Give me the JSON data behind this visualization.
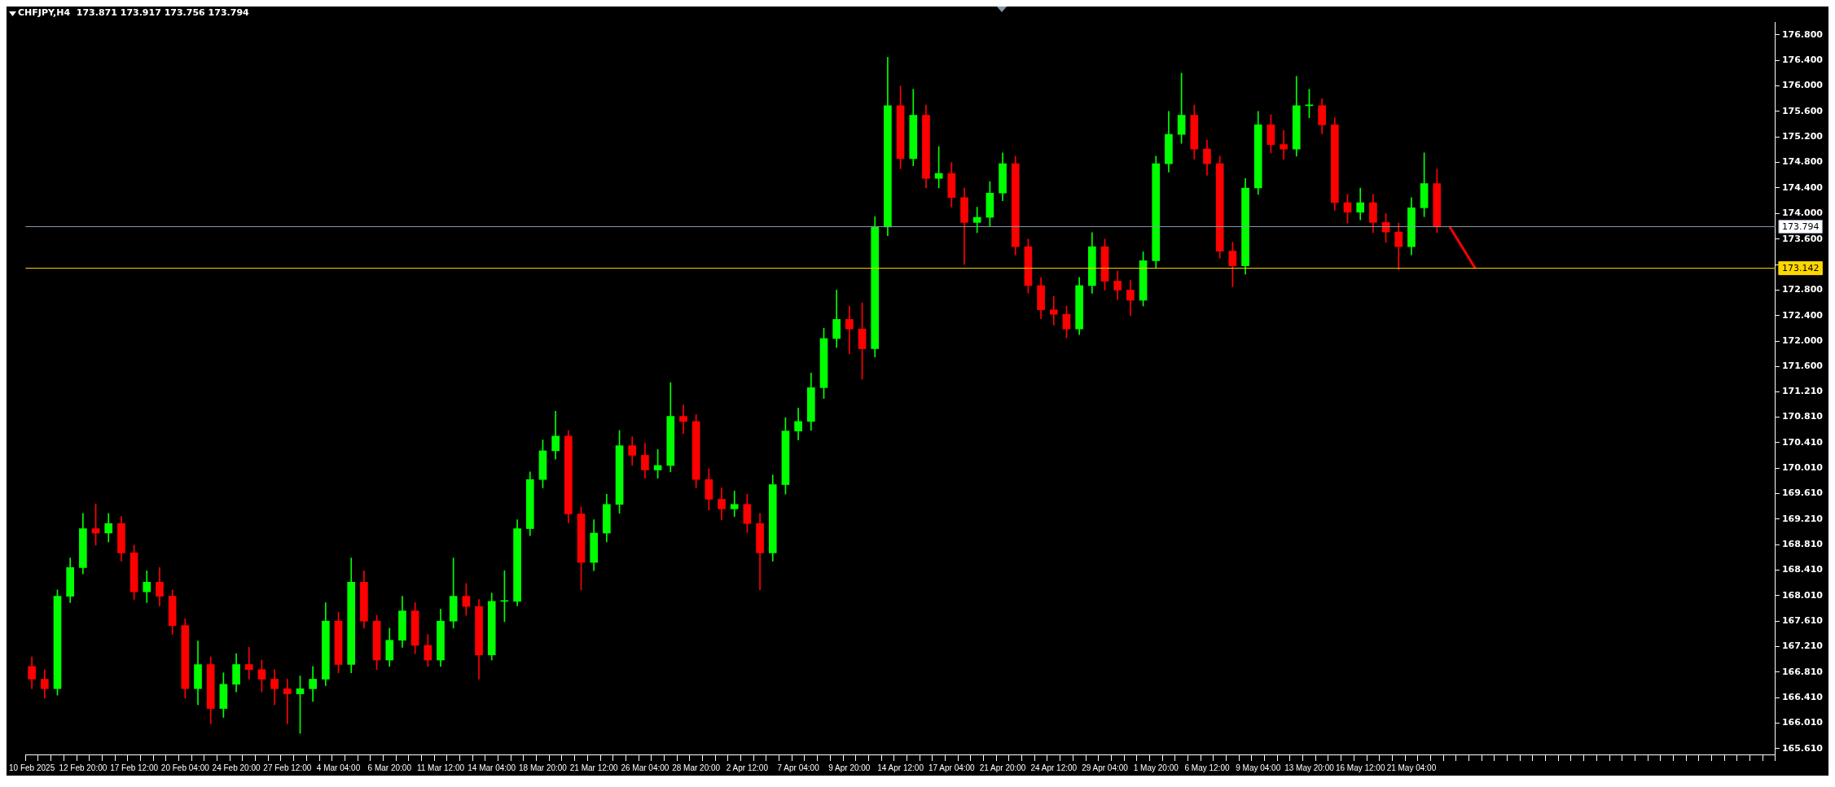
{
  "chart_data": {
    "type": "candlestick",
    "title": "CHFJPY,H4  173.871 173.917 173.756 173.794",
    "categories": [
      "10 Feb 2025",
      null,
      null,
      null,
      "12 Feb 20:00",
      null,
      null,
      null,
      "17 Feb 12:00",
      null,
      null,
      null,
      "20 Feb 04:00",
      null,
      null,
      null,
      "24 Feb 20:00",
      null,
      null,
      null,
      "27 Feb 12:00",
      null,
      null,
      null,
      "4 Mar 04:00",
      null,
      null,
      null,
      "6 Mar 20:00",
      null,
      null,
      null,
      "11 Mar 12:00",
      null,
      null,
      null,
      "14 Mar 04:00",
      null,
      null,
      null,
      "18 Mar 20:00",
      null,
      null,
      null,
      "21 Mar 12:00",
      null,
      null,
      null,
      "26 Mar 04:00",
      null,
      null,
      null,
      "28 Mar 20:00",
      null,
      null,
      null,
      "2 Apr 12:00",
      null,
      null,
      null,
      "7 Apr 04:00",
      null,
      null,
      null,
      "9 Apr 20:00",
      null,
      null,
      null,
      "14 Apr 12:00",
      null,
      null,
      null,
      "17 Apr 04:00",
      null,
      null,
      null,
      "21 Apr 20:00",
      null,
      null,
      null,
      "24 Apr 12:00",
      null,
      null,
      null,
      "29 Apr 04:00",
      null,
      null,
      null,
      "1 May 20:00",
      null,
      null,
      null,
      "6 May 12:00",
      null,
      null,
      null,
      "9 May 04:00",
      null,
      null,
      null,
      "13 May 20:00",
      null,
      null,
      null,
      "16 May 12:00",
      null,
      null,
      null,
      "21 May 04:00",
      null,
      null,
      null,
      null,
      null,
      null,
      null,
      null,
      null,
      null,
      null,
      null,
      null,
      null,
      null,
      null,
      null,
      null,
      null,
      null,
      null,
      null,
      null,
      null,
      null,
      null,
      null,
      null
    ],
    "ohlc": [
      [
        166.9,
        167.05,
        166.55,
        166.7
      ],
      [
        166.7,
        166.85,
        166.4,
        166.55
      ],
      [
        166.55,
        168.1,
        166.45,
        168.0
      ],
      [
        168.0,
        168.6,
        167.9,
        168.45
      ],
      [
        168.45,
        169.3,
        168.35,
        169.06
      ],
      [
        169.06,
        169.45,
        168.8,
        168.99
      ],
      [
        168.99,
        169.3,
        168.85,
        169.14
      ],
      [
        169.14,
        169.25,
        168.55,
        168.68
      ],
      [
        168.68,
        168.8,
        167.95,
        168.07
      ],
      [
        168.07,
        168.4,
        167.9,
        168.22
      ],
      [
        168.22,
        168.45,
        167.85,
        168.0
      ],
      [
        168.0,
        168.1,
        167.4,
        167.54
      ],
      [
        167.54,
        167.65,
        166.4,
        166.55
      ],
      [
        166.55,
        167.3,
        166.3,
        166.93
      ],
      [
        166.93,
        167.05,
        166.0,
        166.24
      ],
      [
        166.24,
        166.8,
        166.1,
        166.62
      ],
      [
        166.62,
        167.1,
        166.5,
        166.93
      ],
      [
        166.93,
        167.2,
        166.7,
        166.85
      ],
      [
        166.85,
        167.0,
        166.5,
        166.7
      ],
      [
        166.7,
        166.85,
        166.3,
        166.55
      ],
      [
        166.55,
        166.7,
        166.0,
        166.47
      ],
      [
        166.47,
        166.75,
        165.85,
        166.55
      ],
      [
        166.55,
        166.9,
        166.35,
        166.7
      ],
      [
        166.7,
        167.9,
        166.6,
        167.61
      ],
      [
        167.61,
        167.75,
        166.8,
        166.93
      ],
      [
        166.93,
        168.6,
        166.8,
        168.22
      ],
      [
        168.22,
        168.4,
        167.5,
        167.61
      ],
      [
        167.61,
        167.7,
        166.85,
        167.0
      ],
      [
        167.0,
        167.5,
        166.9,
        167.31
      ],
      [
        167.31,
        168.0,
        167.2,
        167.77
      ],
      [
        167.77,
        167.9,
        167.1,
        167.23
      ],
      [
        167.23,
        167.4,
        166.9,
        167.0
      ],
      [
        167.0,
        167.8,
        166.9,
        167.61
      ],
      [
        167.61,
        168.6,
        167.5,
        168.0
      ],
      [
        168.0,
        168.2,
        167.7,
        167.84
      ],
      [
        167.84,
        167.95,
        166.7,
        167.08
      ],
      [
        167.08,
        168.05,
        167.0,
        167.92
      ],
      [
        167.92,
        168.4,
        167.6,
        167.92
      ],
      [
        167.92,
        169.2,
        167.85,
        169.06
      ],
      [
        169.06,
        169.95,
        168.95,
        169.83
      ],
      [
        169.83,
        170.45,
        169.7,
        170.28
      ],
      [
        170.28,
        170.9,
        170.15,
        170.51
      ],
      [
        170.51,
        170.6,
        169.15,
        169.29
      ],
      [
        169.29,
        169.4,
        168.1,
        168.53
      ],
      [
        168.53,
        169.2,
        168.4,
        168.99
      ],
      [
        168.99,
        169.6,
        168.85,
        169.44
      ],
      [
        169.44,
        170.6,
        169.3,
        170.36
      ],
      [
        170.36,
        170.5,
        170.05,
        170.21
      ],
      [
        170.21,
        170.4,
        169.85,
        169.98
      ],
      [
        169.98,
        170.3,
        169.85,
        170.05
      ],
      [
        170.05,
        171.35,
        169.95,
        170.82
      ],
      [
        170.82,
        171.0,
        170.55,
        170.74
      ],
      [
        170.74,
        170.85,
        169.7,
        169.83
      ],
      [
        169.83,
        170.0,
        169.35,
        169.52
      ],
      [
        169.52,
        169.7,
        169.2,
        169.37
      ],
      [
        169.37,
        169.65,
        169.25,
        169.44
      ],
      [
        169.44,
        169.6,
        169.0,
        169.14
      ],
      [
        169.14,
        169.3,
        168.1,
        168.68
      ],
      [
        168.68,
        169.9,
        168.55,
        169.75
      ],
      [
        169.75,
        170.8,
        169.6,
        170.59
      ],
      [
        170.59,
        170.95,
        170.45,
        170.74
      ],
      [
        170.74,
        171.5,
        170.6,
        171.27
      ],
      [
        171.27,
        172.2,
        171.1,
        172.04
      ],
      [
        172.04,
        172.8,
        171.9,
        172.34
      ],
      [
        172.34,
        172.55,
        171.8,
        172.19
      ],
      [
        172.19,
        172.6,
        171.4,
        171.88
      ],
      [
        171.88,
        173.95,
        171.75,
        173.79
      ],
      [
        173.79,
        176.45,
        173.65,
        175.69
      ],
      [
        175.69,
        176.0,
        174.7,
        174.86
      ],
      [
        174.86,
        175.95,
        174.75,
        175.54
      ],
      [
        175.54,
        175.7,
        174.4,
        174.55
      ],
      [
        174.55,
        175.05,
        174.4,
        174.63
      ],
      [
        174.63,
        174.8,
        174.1,
        174.25
      ],
      [
        174.25,
        174.4,
        173.2,
        173.86
      ],
      [
        173.86,
        174.1,
        173.7,
        173.94
      ],
      [
        173.94,
        174.5,
        173.8,
        174.32
      ],
      [
        174.32,
        174.95,
        174.2,
        174.78
      ],
      [
        174.78,
        174.9,
        173.35,
        173.48
      ],
      [
        173.48,
        173.6,
        172.75,
        172.87
      ],
      [
        172.87,
        173.0,
        172.35,
        172.49
      ],
      [
        172.49,
        172.7,
        172.25,
        172.42
      ],
      [
        172.42,
        172.55,
        172.05,
        172.19
      ],
      [
        172.19,
        173.0,
        172.1,
        172.87
      ],
      [
        172.87,
        173.7,
        172.75,
        173.48
      ],
      [
        173.48,
        173.6,
        172.8,
        172.94
      ],
      [
        172.94,
        173.1,
        172.65,
        172.8
      ],
      [
        172.8,
        172.95,
        172.4,
        172.64
      ],
      [
        172.64,
        173.4,
        172.55,
        173.26
      ],
      [
        173.26,
        174.9,
        173.15,
        174.78
      ],
      [
        174.78,
        175.6,
        174.65,
        175.24
      ],
      [
        175.24,
        176.2,
        175.1,
        175.54
      ],
      [
        175.54,
        175.7,
        174.85,
        175.01
      ],
      [
        175.01,
        175.15,
        174.6,
        174.78
      ],
      [
        174.78,
        174.9,
        173.3,
        173.41
      ],
      [
        173.41,
        173.55,
        172.85,
        173.18
      ],
      [
        173.18,
        174.55,
        173.05,
        174.4
      ],
      [
        174.4,
        175.6,
        174.3,
        175.39
      ],
      [
        175.39,
        175.55,
        174.95,
        175.08
      ],
      [
        175.08,
        175.3,
        174.85,
        175.01
      ],
      [
        175.01,
        176.15,
        174.9,
        175.69
      ],
      [
        175.69,
        175.95,
        175.5,
        175.69
      ],
      [
        175.69,
        175.8,
        175.25,
        175.39
      ],
      [
        175.39,
        175.5,
        174.05,
        174.17
      ],
      [
        174.17,
        174.3,
        173.85,
        174.02
      ],
      [
        174.02,
        174.4,
        173.9,
        174.17
      ],
      [
        174.17,
        174.3,
        173.7,
        173.86
      ],
      [
        173.86,
        174.0,
        173.55,
        173.71
      ],
      [
        173.71,
        173.85,
        173.12,
        173.48
      ],
      [
        173.48,
        174.25,
        173.35,
        174.09
      ],
      [
        174.09,
        174.95,
        173.95,
        174.47
      ],
      [
        174.47,
        174.7,
        173.7,
        173.79
      ],
      null,
      null,
      null,
      null,
      null,
      null,
      null,
      null,
      null,
      null,
      null,
      null,
      null,
      null,
      null,
      null,
      null,
      null,
      null,
      null,
      null,
      null,
      null,
      null,
      null,
      null
    ],
    "series": [
      {
        "type": "line",
        "color": "#ff0000",
        "values": [
          null,
          null,
          null,
          null,
          null,
          null,
          null,
          null,
          null,
          null,
          null,
          null,
          null,
          null,
          null,
          null,
          null,
          null,
          null,
          null,
          null,
          null,
          null,
          null,
          null,
          null,
          null,
          null,
          null,
          null,
          null,
          null,
          null,
          null,
          null,
          null,
          null,
          null,
          null,
          null,
          null,
          null,
          null,
          null,
          null,
          null,
          null,
          null,
          null,
          null,
          null,
          null,
          null,
          null,
          null,
          null,
          null,
          null,
          null,
          null,
          null,
          null,
          null,
          null,
          null,
          null,
          null,
          null,
          null,
          null,
          null,
          null,
          null,
          null,
          null,
          null,
          null,
          null,
          null,
          null,
          null,
          null,
          null,
          null,
          null,
          null,
          null,
          null,
          null,
          null,
          null,
          null,
          null,
          null,
          null,
          null,
          null,
          null,
          null,
          null,
          null,
          null,
          null,
          null,
          null,
          null,
          null,
          null,
          null,
          null,
          null,
          173.79,
          null,
          173.14,
          null,
          null,
          null,
          null,
          null,
          null,
          null,
          null,
          null,
          null,
          null,
          null,
          null,
          null,
          null,
          null,
          null,
          null,
          null,
          null,
          null,
          null,
          null
        ]
      }
    ],
    "ylim": [
      165.52,
      177.0
    ],
    "yticks": [
      {
        "value": 165.61,
        "label": "165.610"
      },
      {
        "value": 166.01,
        "label": "166.010"
      },
      {
        "value": 166.41,
        "label": "166.410"
      },
      {
        "value": 166.81,
        "label": "166.810"
      },
      {
        "value": 167.21,
        "label": "167.210"
      },
      {
        "value": 167.61,
        "label": "167.610"
      },
      {
        "value": 168.01,
        "label": "168.010"
      },
      {
        "value": 168.41,
        "label": "168.410"
      },
      {
        "value": 168.81,
        "label": "168.810"
      },
      {
        "value": 169.21,
        "label": "169.210"
      },
      {
        "value": 169.61,
        "label": "169.610"
      },
      {
        "value": 170.01,
        "label": "170.010"
      },
      {
        "value": 170.41,
        "label": "170.410"
      },
      {
        "value": 170.81,
        "label": "170.810"
      },
      {
        "value": 171.21,
        "label": "171.210"
      },
      {
        "value": 171.6,
        "label": "171.600"
      },
      {
        "value": 172.0,
        "label": "172.000"
      },
      {
        "value": 172.4,
        "label": "172.400"
      },
      {
        "value": 172.8,
        "label": "172.800"
      },
      {
        "value": 173.2,
        "label": null
      },
      {
        "value": 173.6,
        "label": "173.600"
      },
      {
        "value": 174.0,
        "label": "174.000"
      },
      {
        "value": 174.4,
        "label": "174.400"
      },
      {
        "value": 174.8,
        "label": "174.800"
      },
      {
        "value": 175.2,
        "label": "175.200"
      },
      {
        "value": 175.6,
        "label": "175.600"
      },
      {
        "value": 176.0,
        "label": "176.000"
      },
      {
        "value": 176.4,
        "label": "176.400"
      },
      {
        "value": 176.8,
        "label": "176.800"
      }
    ],
    "ref_lines": [
      {
        "axis": "y",
        "value": 173.794,
        "label": "173.794",
        "color": "#8796a8"
      },
      {
        "axis": "y",
        "value": 173.142,
        "label": "173.142",
        "color": "#ffd700"
      }
    ],
    "grid": false,
    "legend": false,
    "marker": "none",
    "line_style": "solid"
  }
}
